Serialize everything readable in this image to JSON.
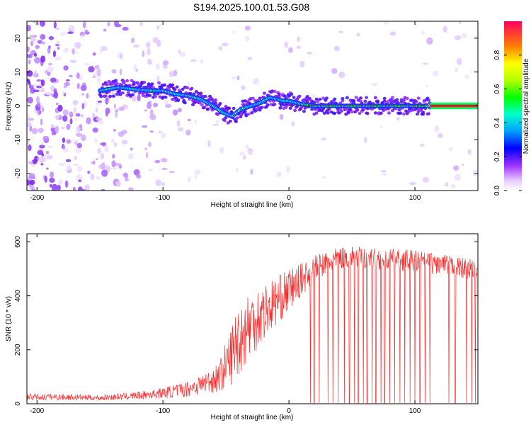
{
  "title": "S194.2025.100.01.53.G08",
  "chart_data": [
    {
      "type": "heatmap",
      "xlabel": "Height of straight line (km)",
      "ylabel": "Frequency (Hz)",
      "xlim": [
        -208,
        150
      ],
      "ylim": [
        -25,
        25
      ],
      "x_ticks": [
        "-200",
        "-100",
        "0",
        "100"
      ],
      "y_ticks": [
        "20",
        "10",
        "0",
        "-10",
        "-20"
      ],
      "colorbar": {
        "label": "Normalized spectral amplitude",
        "range": [
          0,
          1
        ],
        "ticks": [
          "0.0",
          "0.2",
          "0.4",
          "0.6",
          "0.8"
        ]
      },
      "ridge": {
        "x": [
          -150,
          -135,
          -125,
          -110,
          -100,
          -90,
          -80,
          -70,
          -60,
          -52,
          -45,
          -38,
          -30,
          -22,
          -15,
          -10,
          -5,
          0,
          10,
          20,
          40,
          60,
          80,
          100,
          110,
          150
        ],
        "y": [
          4.5,
          5.5,
          5,
          4.5,
          4.5,
          3.5,
          3,
          2,
          0,
          -2,
          -3,
          -1,
          0,
          1,
          2.5,
          2,
          1.5,
          1.5,
          0.5,
          0,
          0,
          0,
          0,
          0,
          0,
          0
        ]
      },
      "reference_line_hz": 0
    },
    {
      "type": "line",
      "xlabel": "Height of straight line (km)",
      "ylabel": "SNR (10 * v/v)",
      "xlim": [
        -208,
        150
      ],
      "ylim": [
        0,
        630
      ],
      "x_ticks": [
        "-200",
        "-100",
        "0",
        "100"
      ],
      "y_ticks": [
        "600",
        "400",
        "200",
        "0"
      ],
      "color": "#ff2a2a",
      "envelope": {
        "x": [
          -208,
          -180,
          -150,
          -120,
          -100,
          -80,
          -65,
          -55,
          -48,
          -40,
          -30,
          -20,
          -10,
          0,
          10,
          20,
          30,
          40,
          50,
          60,
          80,
          100,
          120,
          140,
          150
        ],
        "mean": [
          25,
          25,
          22,
          30,
          40,
          55,
          80,
          100,
          160,
          240,
          300,
          340,
          380,
          420,
          460,
          500,
          520,
          540,
          545,
          540,
          535,
          530,
          515,
          500,
          495
        ],
        "spread": [
          12,
          12,
          10,
          14,
          20,
          30,
          40,
          60,
          100,
          140,
          130,
          110,
          90,
          80,
          60,
          50,
          45,
          40,
          40,
          40,
          40,
          40,
          40,
          40,
          40
        ]
      },
      "dropouts_x": [
        17,
        20,
        24,
        31,
        35,
        39,
        44,
        48,
        52,
        55,
        59,
        62,
        66,
        69,
        73,
        76,
        80,
        84,
        88,
        92,
        96,
        100,
        104,
        108,
        112,
        127,
        132,
        141,
        145,
        148
      ]
    }
  ]
}
